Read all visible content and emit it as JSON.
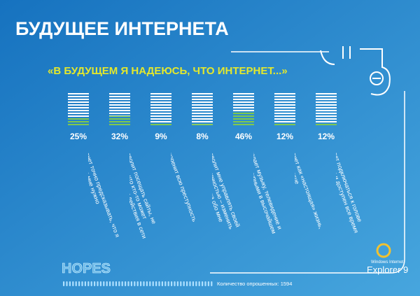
{
  "chart_data": {
    "type": "bar",
    "title": "БУДУЩЕЕ ИНТЕРНЕТА",
    "subtitle": "«В БУДУЩЕМ Я НАДЕЮСЬ, ЧТО ИНТЕРНЕТ...»",
    "categories": [
      "Станет точно предсказывать, что я хочу и что мне нужно",
      "Позволит посещать сайты, не опасаясь, что кто-то может отслеживать мои действия в сети",
      "Искоренит всю преступность",
      "Позволит мне управлять своей сетевой личностью – изменить результаты поиска обо мне",
      "Сделает музыку, телевидение и игры доступными в высочайшем качестве",
      "Станет как «настоящая» жизнь, только лучше",
      "Будет подключаться к голове напрямую и доступен все время"
    ],
    "values": [
      25,
      32,
      9,
      8,
      46,
      12,
      12
    ],
    "value_labels": [
      "25%",
      "32%",
      "9%",
      "8%",
      "46%",
      "12%",
      "12%"
    ],
    "ylim": [
      0,
      100
    ],
    "color": "#7ec850",
    "footer": {
      "brand": "HOPES",
      "note": "Количество опрошенных: 1594",
      "logo_top": "Windows Internet",
      "logo_bottom": "Explorer 9"
    }
  }
}
